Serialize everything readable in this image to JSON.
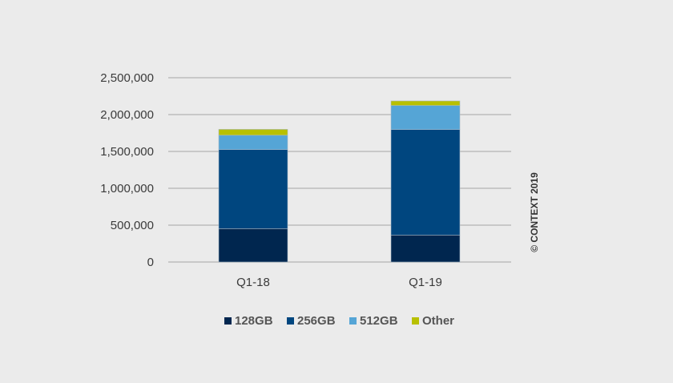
{
  "chart_data": {
    "type": "bar",
    "stacked": true,
    "categories": [
      "Q1-18",
      "Q1-19"
    ],
    "series": [
      {
        "name": "128GB",
        "color": "#00264f",
        "values": [
          453000,
          366000
        ]
      },
      {
        "name": "256GB",
        "color": "#00467f",
        "values": [
          1072000,
          1431000
        ]
      },
      {
        "name": "512GB",
        "color": "#55a5d6",
        "values": [
          195000,
          326000
        ]
      },
      {
        "name": "Other",
        "color": "#b8c000",
        "values": [
          80000,
          62000
        ]
      }
    ],
    "ylim": [
      0,
      2500000
    ],
    "yticks": [
      0,
      500000,
      1000000,
      1500000,
      2000000,
      2500000
    ],
    "ytick_labels": [
      "0",
      "500,000",
      "1,000,000",
      "1,500,000",
      "2,000,000",
      "2,500,000"
    ],
    "grid": true,
    "legend_position": "bottom",
    "title": "",
    "xlabel": "",
    "ylabel": ""
  },
  "copyright": "© CONTEXT 2019"
}
